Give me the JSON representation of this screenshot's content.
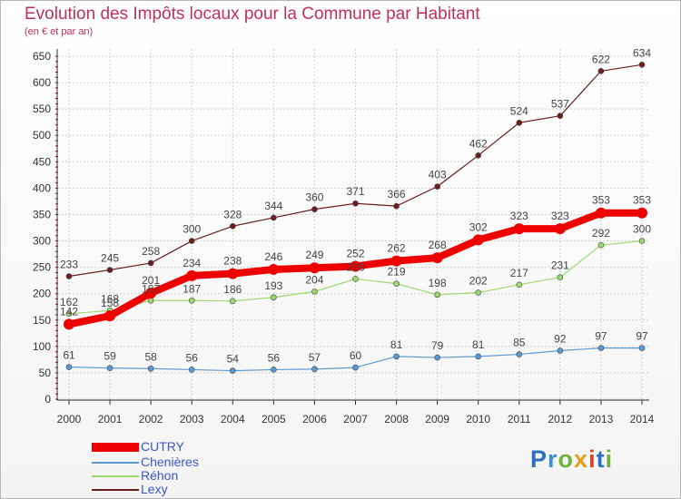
{
  "title": "Evolution des Impôts locaux pour la Commune par Habitant",
  "subtitle": "(en € et par an)",
  "logo": {
    "text": "Proxiti",
    "letter_colors": [
      "#2e6fbf",
      "#3b8fd9",
      "#6fb43f",
      "#e0a11a",
      "#d9442b",
      "#2e6fbf",
      "#6fb43f"
    ]
  },
  "chart_data": {
    "type": "line",
    "categories": [
      "2000",
      "2001",
      "2002",
      "2003",
      "2004",
      "2005",
      "2006",
      "2007",
      "2008",
      "2009",
      "2010",
      "2011",
      "2012",
      "2013",
      "2014"
    ],
    "ylim": [
      0,
      650
    ],
    "yticks": [
      0,
      50,
      100,
      150,
      200,
      250,
      300,
      350,
      400,
      450,
      500,
      550,
      600,
      650
    ],
    "grid": true,
    "legend_position": "bottom-left",
    "series": [
      {
        "name": "CUTRY",
        "color": "#ee0000",
        "values": [
          142,
          158,
          201,
          234,
          238,
          246,
          249,
          252,
          262,
          268,
          302,
          323,
          323,
          353,
          353
        ]
      },
      {
        "name": "Chenières",
        "color": "#5b9bd5",
        "values": [
          61,
          59,
          58,
          56,
          54,
          56,
          57,
          60,
          81,
          79,
          81,
          85,
          92,
          97,
          97
        ]
      },
      {
        "name": "Réhon",
        "color": "#9cd96e",
        "values": [
          162,
          168,
          187,
          187,
          186,
          193,
          204,
          228,
          219,
          198,
          202,
          217,
          231,
          292,
          300
        ]
      },
      {
        "name": "Lexy",
        "color": "#6b1f1f",
        "values": [
          233,
          245,
          258,
          300,
          328,
          344,
          360,
          371,
          366,
          403,
          462,
          524,
          537,
          622,
          634
        ]
      }
    ]
  }
}
